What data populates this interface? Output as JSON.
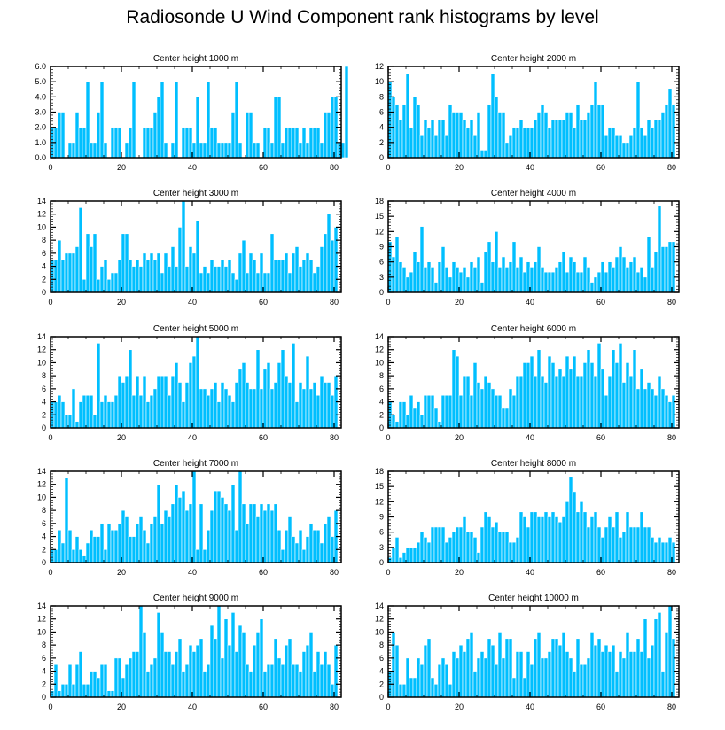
{
  "title": "Radiosonde U Wind Component rank histograms by level",
  "colors": {
    "bar": "#00BFFF",
    "bar_edge": "#ffffff",
    "axis": "#000000"
  },
  "chart_data": [
    {
      "type": "bar",
      "title": "Center height 1000 m",
      "xlim": [
        0,
        82
      ],
      "ylim": [
        0,
        6
      ],
      "x_ticks": [
        0,
        20,
        40,
        60,
        80
      ],
      "y_ticks": [
        "0.0",
        "1.0",
        "2.0",
        "3.0",
        "4.0",
        "5.0",
        "6.0"
      ],
      "values": [
        2,
        2,
        3,
        3,
        0,
        1,
        1,
        3,
        2,
        2,
        5,
        1,
        1,
        3,
        5,
        1,
        0,
        2,
        2,
        2,
        0,
        1,
        2,
        5,
        0,
        0,
        2,
        2,
        2,
        3,
        4,
        5,
        1,
        0,
        1,
        5,
        0,
        2,
        2,
        2,
        1,
        4,
        1,
        1,
        5,
        2,
        2,
        1,
        1,
        1,
        1,
        3,
        5,
        1,
        0,
        3,
        3,
        1,
        1,
        0,
        2,
        2,
        1,
        4,
        4,
        1,
        2,
        2,
        2,
        2,
        1,
        2,
        1,
        2,
        2,
        2,
        1,
        3,
        3,
        4,
        4,
        1,
        1,
        6
      ]
    },
    {
      "type": "bar",
      "title": "Center height 2000 m",
      "xlim": [
        0,
        82
      ],
      "ylim": [
        0,
        12
      ],
      "x_ticks": [
        0,
        20,
        40,
        60,
        80
      ],
      "y_ticks": [
        "0",
        "2",
        "4",
        "6",
        "8",
        "10",
        "12"
      ],
      "values": [
        10,
        8,
        7,
        5,
        7,
        11,
        4,
        8,
        7,
        3,
        5,
        4,
        5,
        3,
        5,
        5,
        3,
        7,
        6,
        6,
        6,
        5,
        4,
        5,
        3,
        6,
        1,
        1,
        7,
        11,
        8,
        6,
        6,
        2,
        3,
        4,
        4,
        5,
        4,
        4,
        4,
        5,
        6,
        7,
        6,
        4,
        5,
        5,
        5,
        5,
        6,
        6,
        4,
        7,
        5,
        5,
        6,
        7,
        10,
        7,
        7,
        3,
        4,
        4,
        3,
        3,
        2,
        2,
        3,
        4,
        10,
        4,
        3,
        5,
        4,
        5,
        5,
        6,
        7,
        9,
        7
      ]
    },
    {
      "type": "bar",
      "title": "Center height 3000 m",
      "xlim": [
        0,
        82
      ],
      "ylim": [
        0,
        14
      ],
      "x_ticks": [
        0,
        20,
        40,
        60,
        80
      ],
      "y_ticks": [
        "0",
        "2",
        "4",
        "6",
        "8",
        "10",
        "12",
        "14"
      ],
      "values": [
        5,
        5,
        8,
        5,
        6,
        6,
        6,
        7,
        13,
        2,
        9,
        7,
        9,
        2,
        4,
        5,
        2,
        3,
        3,
        5,
        9,
        9,
        5,
        4,
        5,
        4,
        6,
        5,
        6,
        5,
        6,
        3,
        6,
        4,
        7,
        4,
        10,
        14,
        4,
        7,
        6,
        11,
        3,
        4,
        3,
        5,
        4,
        4,
        5,
        4,
        5,
        3,
        2,
        6,
        8,
        3,
        6,
        5,
        3,
        6,
        3,
        3,
        9,
        5,
        5,
        5,
        6,
        3,
        6,
        7,
        4,
        5,
        6,
        5,
        3,
        4,
        7,
        9,
        12,
        8,
        10
      ]
    },
    {
      "type": "bar",
      "title": "Center height 4000 m",
      "xlim": [
        0,
        82
      ],
      "ylim": [
        0,
        18
      ],
      "x_ticks": [
        0,
        20,
        40,
        60,
        80
      ],
      "y_ticks": [
        "0",
        "3",
        "6",
        "9",
        "12",
        "15",
        "18"
      ],
      "values": [
        10,
        7,
        11,
        6,
        5,
        3,
        4,
        8,
        6,
        13,
        5,
        6,
        5,
        2,
        6,
        9,
        5,
        3,
        6,
        5,
        4,
        5,
        3,
        6,
        5,
        7,
        2,
        8,
        10,
        6,
        12,
        5,
        7,
        5,
        6,
        10,
        5,
        7,
        4,
        6,
        5,
        6,
        9,
        5,
        4,
        4,
        4,
        5,
        6,
        8,
        4,
        7,
        6,
        4,
        4,
        7,
        5,
        2,
        3,
        4,
        6,
        4,
        6,
        5,
        7,
        9,
        7,
        5,
        6,
        7,
        4,
        5,
        3,
        11,
        5,
        8,
        17,
        9,
        9,
        10,
        10
      ]
    },
    {
      "type": "bar",
      "title": "Center height 5000 m",
      "xlim": [
        0,
        82
      ],
      "ylim": [
        0,
        14
      ],
      "x_ticks": [
        0,
        20,
        40,
        60,
        80
      ],
      "y_ticks": [
        "0",
        "2",
        "4",
        "6",
        "8",
        "10",
        "12",
        "14"
      ],
      "values": [
        4,
        4,
        5,
        4,
        2,
        2,
        6,
        1,
        4,
        5,
        5,
        5,
        2,
        13,
        4,
        5,
        4,
        4,
        5,
        8,
        7,
        8,
        12,
        5,
        8,
        5,
        8,
        4,
        5,
        6,
        8,
        8,
        8,
        5,
        8,
        10,
        7,
        4,
        7,
        10,
        11,
        14,
        6,
        6,
        5,
        6,
        7,
        4,
        7,
        6,
        5,
        4,
        7,
        9,
        10,
        7,
        6,
        6,
        12,
        6,
        9,
        10,
        6,
        7,
        10,
        12,
        8,
        7,
        13,
        4,
        7,
        6,
        11,
        6,
        7,
        5,
        8,
        7,
        7,
        5,
        8
      ]
    },
    {
      "type": "bar",
      "title": "Center height 6000 m",
      "xlim": [
        0,
        82
      ],
      "ylim": [
        0,
        14
      ],
      "x_ticks": [
        0,
        20,
        40,
        60,
        80
      ],
      "y_ticks": [
        "0",
        "2",
        "4",
        "6",
        "8",
        "10",
        "12",
        "14"
      ],
      "values": [
        4,
        2,
        1,
        4,
        4,
        2,
        5,
        3,
        4,
        2,
        5,
        5,
        5,
        3,
        1,
        5,
        5,
        5,
        12,
        11,
        5,
        8,
        8,
        5,
        10,
        7,
        6,
        8,
        7,
        6,
        5,
        5,
        3,
        3,
        6,
        5,
        8,
        8,
        10,
        10,
        11,
        8,
        12,
        8,
        7,
        11,
        10,
        8,
        9,
        8,
        11,
        9,
        11,
        8,
        8,
        10,
        12,
        10,
        8,
        13,
        9,
        5,
        8,
        12,
        10,
        13,
        7,
        10,
        8,
        12,
        6,
        9,
        6,
        7,
        6,
        5,
        8,
        6,
        5,
        4,
        5
      ]
    },
    {
      "type": "bar",
      "title": "Center height 7000 m",
      "xlim": [
        0,
        82
      ],
      "ylim": [
        0,
        14
      ],
      "x_ticks": [
        0,
        20,
        40,
        60,
        80
      ],
      "y_ticks": [
        "0",
        "2",
        "4",
        "6",
        "8",
        "10",
        "12",
        "14"
      ],
      "values": [
        2,
        2,
        5,
        3,
        13,
        5,
        2,
        4,
        2,
        1,
        3,
        5,
        4,
        4,
        6,
        2,
        6,
        5,
        5,
        6,
        8,
        7,
        4,
        4,
        6,
        7,
        5,
        3,
        6,
        7,
        12,
        6,
        8,
        7,
        9,
        12,
        10,
        11,
        8,
        9,
        14,
        2,
        9,
        2,
        5,
        8,
        11,
        11,
        10,
        9,
        8,
        12,
        5,
        14,
        9,
        6,
        9,
        9,
        7,
        9,
        8,
        9,
        8,
        9,
        5,
        2,
        5,
        7,
        4,
        3,
        5,
        2,
        4,
        6,
        5,
        5,
        3,
        6,
        7,
        4,
        8
      ]
    },
    {
      "type": "bar",
      "title": "Center height 8000 m",
      "xlim": [
        0,
        82
      ],
      "ylim": [
        0,
        18
      ],
      "x_ticks": [
        0,
        20,
        40,
        60,
        80
      ],
      "y_ticks": [
        "0",
        "3",
        "6",
        "9",
        "12",
        "15",
        "18"
      ],
      "values": [
        1,
        3,
        5,
        1,
        2,
        3,
        3,
        3,
        4,
        6,
        5,
        4,
        7,
        7,
        7,
        7,
        4,
        5,
        6,
        7,
        7,
        9,
        6,
        6,
        5,
        2,
        7,
        10,
        9,
        7,
        8,
        6,
        6,
        6,
        4,
        4,
        5,
        10,
        9,
        7,
        10,
        10,
        9,
        9,
        10,
        9,
        10,
        9,
        8,
        9,
        12,
        17,
        14,
        10,
        12,
        10,
        7,
        9,
        10,
        7,
        5,
        7,
        9,
        7,
        10,
        5,
        6,
        10,
        7,
        7,
        7,
        10,
        7,
        7,
        5,
        4,
        5,
        4,
        4,
        5,
        4
      ]
    },
    {
      "type": "bar",
      "title": "Center height 9000 m",
      "xlim": [
        0,
        82
      ],
      "ylim": [
        0,
        14
      ],
      "x_ticks": [
        0,
        20,
        40,
        60,
        80
      ],
      "y_ticks": [
        "0",
        "2",
        "4",
        "6",
        "8",
        "10",
        "12",
        "14"
      ],
      "values": [
        1,
        5,
        1,
        2,
        2,
        5,
        2,
        5,
        7,
        2,
        2,
        4,
        4,
        3,
        5,
        5,
        1,
        1,
        6,
        6,
        3,
        5,
        6,
        7,
        7,
        14,
        10,
        4,
        5,
        6,
        13,
        10,
        7,
        7,
        5,
        7,
        9,
        4,
        5,
        8,
        7,
        8,
        9,
        4,
        5,
        11,
        9,
        14,
        6,
        12,
        8,
        13,
        7,
        11,
        10,
        5,
        4,
        8,
        10,
        12,
        4,
        5,
        5,
        9,
        6,
        5,
        8,
        9,
        5,
        5,
        4,
        7,
        8,
        10,
        4,
        7,
        5,
        7,
        5,
        2,
        8
      ]
    },
    {
      "type": "bar",
      "title": "Center height 10000 m",
      "xlim": [
        0,
        82
      ],
      "ylim": [
        0,
        14
      ],
      "x_ticks": [
        0,
        20,
        40,
        60,
        80
      ],
      "y_ticks": [
        "0",
        "2",
        "4",
        "6",
        "8",
        "10",
        "12",
        "14"
      ],
      "values": [
        4,
        10,
        8,
        2,
        2,
        6,
        3,
        3,
        6,
        5,
        8,
        9,
        3,
        2,
        5,
        6,
        5,
        2,
        7,
        6,
        8,
        7,
        9,
        10,
        4,
        6,
        7,
        6,
        9,
        8,
        5,
        10,
        6,
        9,
        9,
        3,
        7,
        7,
        3,
        7,
        5,
        9,
        10,
        6,
        6,
        7,
        9,
        9,
        8,
        10,
        7,
        6,
        4,
        9,
        5,
        5,
        6,
        10,
        8,
        9,
        7,
        8,
        7,
        8,
        4,
        7,
        6,
        10,
        7,
        7,
        9,
        7,
        12,
        6,
        8,
        12,
        13,
        4,
        10,
        14,
        9
      ]
    }
  ]
}
